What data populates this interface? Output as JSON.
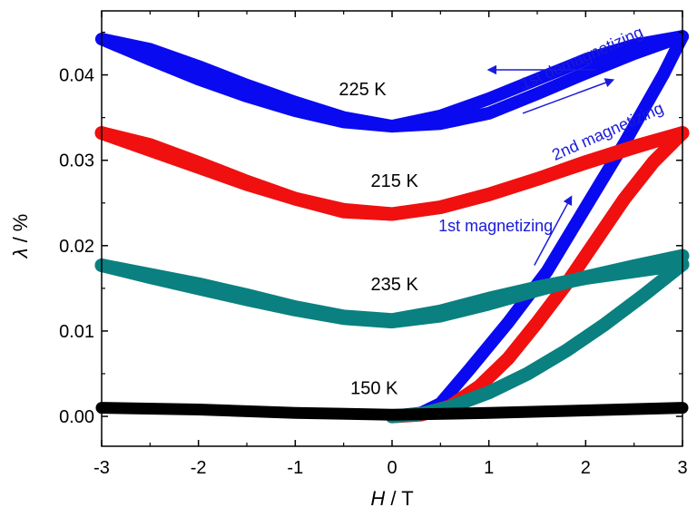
{
  "chart_data": {
    "type": "line",
    "title": "",
    "xlabel": {
      "var": "H",
      "unit": " / T"
    },
    "ylabel": {
      "var": "λ",
      "unit": " / %"
    },
    "xlim": [
      -3,
      3
    ],
    "ylim": [
      -0.0035,
      0.0475
    ],
    "xticks": [
      "-3",
      "-2",
      "-1",
      "0",
      "1",
      "2",
      "3"
    ],
    "yticks": [
      "0.00",
      "0.01",
      "0.02",
      "0.03",
      "0.04"
    ],
    "ytick_values": [
      0.0,
      0.01,
      0.02,
      0.03,
      0.04
    ],
    "xtick_values": [
      -3,
      -2,
      -1,
      0,
      1,
      2,
      3
    ],
    "grid": false,
    "legend": "none",
    "series": [
      {
        "name": "225 K",
        "color": "#0a0af0",
        "branches": [
          {
            "x": [
              0,
              0.3,
              0.5,
              0.8,
              1.2,
              1.6,
              2.0,
              2.4,
              2.8,
              3.0
            ],
            "y": [
              0.0,
              0.0004,
              0.0015,
              0.0055,
              0.011,
              0.017,
              0.0245,
              0.032,
              0.04,
              0.0445
            ]
          },
          {
            "x": [
              3.0,
              2.5,
              2.0,
              1.5,
              1.0,
              0.5,
              0.0,
              -0.5,
              -1.0,
              -1.5,
              -2.0,
              -2.5,
              -3.0
            ],
            "y": [
              0.0445,
              0.0425,
              0.0402,
              0.0378,
              0.0355,
              0.0343,
              0.034,
              0.035,
              0.0368,
              0.0388,
              0.041,
              0.043,
              0.0442
            ]
          },
          {
            "x": [
              -3.0,
              -2.5,
              -2.0,
              -1.5,
              -1.0,
              -0.5,
              0.0,
              0.5,
              1.0,
              1.5,
              2.0,
              2.5,
              3.0
            ],
            "y": [
              0.0442,
              0.0418,
              0.0395,
              0.0375,
              0.0358,
              0.0345,
              0.034,
              0.0352,
              0.0372,
              0.0395,
              0.0418,
              0.0435,
              0.0445
            ]
          }
        ]
      },
      {
        "name": "215 K",
        "color": "#f01010",
        "branches": [
          {
            "x": [
              0,
              0.3,
              0.6,
              0.9,
              1.2,
              1.5,
              1.8,
              2.1,
              2.4,
              2.7,
              3.0
            ],
            "y": [
              0.0,
              0.0002,
              0.0012,
              0.0035,
              0.0068,
              0.011,
              0.0155,
              0.0205,
              0.0255,
              0.0298,
              0.0332
            ]
          },
          {
            "x": [
              3.0,
              2.5,
              2.0,
              1.5,
              1.0,
              0.5,
              0.0,
              -0.5,
              -1.0,
              -1.5,
              -2.0,
              -2.5,
              -3.0
            ],
            "y": [
              0.0332,
              0.0316,
              0.0298,
              0.0278,
              0.026,
              0.0245,
              0.0237,
              0.024,
              0.0255,
              0.0275,
              0.0297,
              0.0318,
              0.0332
            ]
          },
          {
            "x": [
              -3.0,
              -2.5,
              -2.0,
              -1.5,
              -1.0,
              -0.5,
              0.0,
              0.5,
              1.0,
              1.5,
              2.0,
              2.5,
              3.0
            ],
            "y": [
              0.0332,
              0.0312,
              0.0292,
              0.0272,
              0.0255,
              0.0242,
              0.0237,
              0.0245,
              0.026,
              0.0278,
              0.0297,
              0.0315,
              0.0332
            ]
          }
        ]
      },
      {
        "name": "235 K",
        "color": "#0a8080",
        "branches": [
          {
            "x": [
              0,
              0.3,
              0.6,
              1.0,
              1.4,
              1.8,
              2.2,
              2.6,
              3.0
            ],
            "y": [
              0.0,
              0.0003,
              0.0011,
              0.0028,
              0.005,
              0.0077,
              0.0108,
              0.0142,
              0.0178
            ]
          },
          {
            "x": [
              3.0,
              2.5,
              2.0,
              1.5,
              1.0,
              0.5,
              0.0,
              -0.5,
              -1.0,
              -1.5,
              -2.0,
              -2.5,
              -3.0
            ],
            "y": [
              0.0178,
              0.017,
              0.0162,
              0.0151,
              0.0138,
              0.0123,
              0.0113,
              0.0117,
              0.0128,
              0.0142,
              0.0155,
              0.0166,
              0.0177
            ]
          },
          {
            "x": [
              -3.0,
              -2.5,
              -2.0,
              -1.5,
              -1.0,
              -0.5,
              0.0,
              0.5,
              1.0,
              1.5,
              2.0,
              2.5,
              3.0
            ],
            "y": [
              0.0177,
              0.0163,
              0.015,
              0.0137,
              0.0125,
              0.0115,
              0.0111,
              0.0118,
              0.0132,
              0.0148,
              0.0163,
              0.0176,
              0.0188
            ]
          }
        ]
      },
      {
        "name": "150 K",
        "color": "#000000",
        "branches": [
          {
            "x": [
              -3.0,
              -2.0,
              -1.0,
              0.0,
              1.0,
              2.0,
              3.0
            ],
            "y": [
              0.001,
              0.0008,
              0.0004,
              0.0002,
              0.0004,
              0.0007,
              0.001
            ]
          }
        ]
      }
    ],
    "curve_labels": [
      {
        "text": "225 K",
        "x": -0.55,
        "y": 0.0376
      },
      {
        "text": "215 K",
        "x": -0.22,
        "y": 0.0269
      },
      {
        "text": "235 K",
        "x": -0.22,
        "y": 0.0148
      },
      {
        "text": "150 K",
        "x": -0.43,
        "y": 0.0026
      }
    ],
    "annotations": [
      {
        "text": "1st demagnetizing",
        "x": 1.98,
        "y": 0.0414,
        "rotate": -24,
        "arrow": {
          "from": [
            2.1,
            0.0406
          ],
          "to": [
            1.0,
            0.0406
          ]
        }
      },
      {
        "text": "2nd magnetizing",
        "x": 2.25,
        "y": 0.0328,
        "rotate": -24,
        "arrow": {
          "from": [
            1.35,
            0.0355
          ],
          "to": [
            2.28,
            0.0394
          ]
        }
      },
      {
        "text": "1st magnetizing",
        "x": 1.07,
        "y": 0.0217,
        "rotate": 0,
        "arrow": {
          "from": [
            1.47,
            0.0177
          ],
          "to": [
            1.85,
            0.0257
          ]
        }
      }
    ]
  }
}
